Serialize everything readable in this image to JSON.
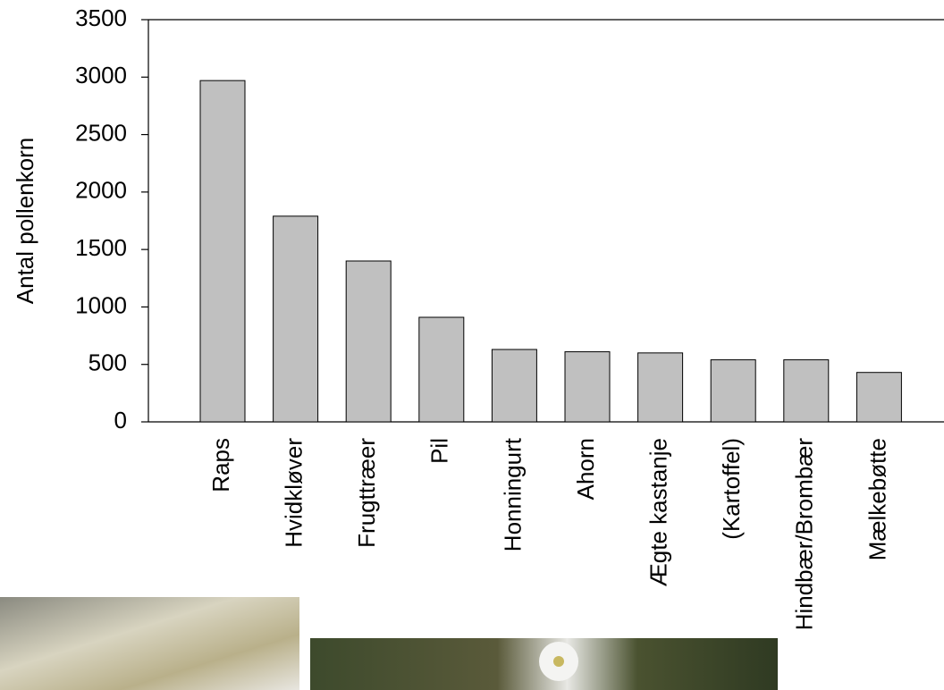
{
  "chart_data": {
    "type": "bar",
    "y_label": "Antal pollenkorn",
    "categories": [
      "Raps",
      "Hvidkløver",
      "Frugttræer",
      "Pil",
      "Honningurt",
      "Ahorn",
      "Ægte kastanje",
      "(Kartoffel)",
      "Hindbær/Brombær",
      "Mælkebøtte"
    ],
    "values": [
      2970,
      1790,
      1400,
      910,
      630,
      610,
      600,
      540,
      540,
      430
    ],
    "color": "#c0c0c0",
    "ylim": [
      0,
      3500
    ],
    "yticks": [
      0,
      500,
      1000,
      1500,
      2000,
      2500,
      3000,
      3500
    ],
    "grid": false
  }
}
